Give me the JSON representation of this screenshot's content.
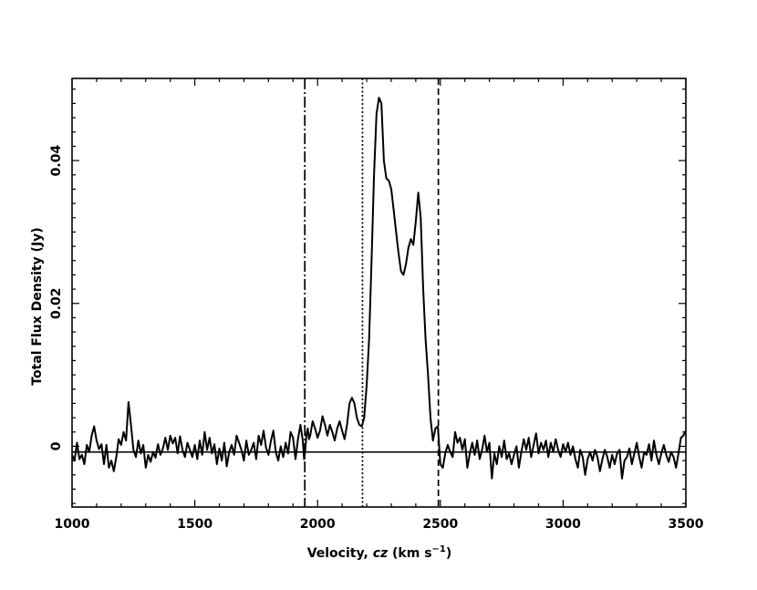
{
  "chart_data": {
    "type": "line",
    "title": "",
    "xlabel": {
      "prefix": "Velocity, ",
      "italic": "cz",
      "suffix": " (km s",
      "sup": "−1",
      "close": ")"
    },
    "ylabel": "Total Flux Density (Jy)",
    "xlim": [
      1000,
      3500
    ],
    "ylim": [
      -0.0085,
      0.0515
    ],
    "xticks": [
      1000,
      1500,
      2000,
      2500,
      3000,
      3500
    ],
    "yticks": [
      0,
      0.02,
      0.04
    ],
    "xtick_labels": [
      "1000",
      "1500",
      "2000",
      "2500",
      "3000",
      "3500"
    ],
    "ytick_labels": [
      "0",
      "0.02",
      "0.04"
    ],
    "baseline": -0.0008,
    "vertical_lines": [
      {
        "x": 1948,
        "style": "dash-dot"
      },
      {
        "x": 2183,
        "style": "dotted"
      },
      {
        "x": 2492,
        "style": "dashed"
      }
    ],
    "series": [
      {
        "points": [
          [
            1000,
            -0.0012
          ],
          [
            1010,
            -0.002
          ],
          [
            1020,
            0.0005
          ],
          [
            1030,
            -0.0018
          ],
          [
            1040,
            -0.0012
          ],
          [
            1050,
            -0.0025
          ],
          [
            1060,
            0.0002
          ],
          [
            1070,
            -0.0008
          ],
          [
            1080,
            0.0015
          ],
          [
            1090,
            0.0028
          ],
          [
            1100,
            0.0008
          ],
          [
            1110,
            -0.0004
          ],
          [
            1120,
            0.0003
          ],
          [
            1130,
            -0.0025
          ],
          [
            1140,
            0.0002
          ],
          [
            1150,
            -0.003
          ],
          [
            1160,
            -0.002
          ],
          [
            1170,
            -0.0035
          ],
          [
            1180,
            -0.0015
          ],
          [
            1190,
            0.001
          ],
          [
            1200,
            0.0002
          ],
          [
            1210,
            0.002
          ],
          [
            1220,
            0.0008
          ],
          [
            1230,
            0.0062
          ],
          [
            1240,
            0.003
          ],
          [
            1250,
            -0.0005
          ],
          [
            1260,
            -0.0015
          ],
          [
            1270,
            0.0008
          ],
          [
            1280,
            -0.001
          ],
          [
            1290,
            0.0002
          ],
          [
            1300,
            -0.003
          ],
          [
            1310,
            -0.0012
          ],
          [
            1320,
            -0.0022
          ],
          [
            1330,
            -0.0008
          ],
          [
            1340,
            -0.0016
          ],
          [
            1350,
            0.0003
          ],
          [
            1360,
            -0.0012
          ],
          [
            1370,
            -0.0003
          ],
          [
            1380,
            0.0012
          ],
          [
            1390,
            -0.0005
          ],
          [
            1400,
            0.0015
          ],
          [
            1410,
            0.0004
          ],
          [
            1420,
            0.0012
          ],
          [
            1430,
            -0.001
          ],
          [
            1440,
            0.0014
          ],
          [
            1450,
            -0.0005
          ],
          [
            1460,
            -0.0015
          ],
          [
            1470,
            0.0005
          ],
          [
            1480,
            -0.0005
          ],
          [
            1490,
            -0.0015
          ],
          [
            1500,
            0.0002
          ],
          [
            1510,
            -0.0018
          ],
          [
            1520,
            0.0008
          ],
          [
            1530,
            -0.0012
          ],
          [
            1540,
            0.002
          ],
          [
            1550,
            -0.0005
          ],
          [
            1560,
            0.0012
          ],
          [
            1570,
            -0.001
          ],
          [
            1580,
            0.0003
          ],
          [
            1590,
            -0.0025
          ],
          [
            1600,
            -0.0003
          ],
          [
            1610,
            -0.002
          ],
          [
            1620,
            0.0005
          ],
          [
            1630,
            -0.0028
          ],
          [
            1640,
            -0.0008
          ],
          [
            1650,
            0.0002
          ],
          [
            1660,
            -0.0012
          ],
          [
            1670,
            0.0015
          ],
          [
            1680,
            0.0005
          ],
          [
            1690,
            -0.0005
          ],
          [
            1700,
            -0.002
          ],
          [
            1710,
            0.0008
          ],
          [
            1720,
            -0.0012
          ],
          [
            1730,
            -0.0005
          ],
          [
            1740,
            0.0005
          ],
          [
            1750,
            -0.0018
          ],
          [
            1760,
            0.0015
          ],
          [
            1770,
            0.0002
          ],
          [
            1780,
            0.0022
          ],
          [
            1790,
            -0.0002
          ],
          [
            1800,
            -0.0012
          ],
          [
            1810,
            0.0008
          ],
          [
            1820,
            0.0022
          ],
          [
            1830,
            -0.0008
          ],
          [
            1840,
            -0.002
          ],
          [
            1850,
            0.0
          ],
          [
            1860,
            -0.0015
          ],
          [
            1870,
            0.0005
          ],
          [
            1880,
            -0.001
          ],
          [
            1890,
            0.002
          ],
          [
            1900,
            0.0012
          ],
          [
            1910,
            -0.0018
          ],
          [
            1920,
            0.001
          ],
          [
            1930,
            0.003
          ],
          [
            1940,
            0.0008
          ],
          [
            1945,
            -0.0018
          ],
          [
            1950,
            -0.0005
          ],
          [
            1955,
            0.0018
          ],
          [
            1960,
            0.0025
          ],
          [
            1965,
            0.001
          ],
          [
            1970,
            0.0015
          ],
          [
            1980,
            0.0035
          ],
          [
            1990,
            0.0025
          ],
          [
            2000,
            0.0012
          ],
          [
            2010,
            0.0022
          ],
          [
            2020,
            0.0042
          ],
          [
            2030,
            0.003
          ],
          [
            2040,
            0.0015
          ],
          [
            2050,
            0.003
          ],
          [
            2060,
            0.002
          ],
          [
            2070,
            0.0008
          ],
          [
            2080,
            0.0025
          ],
          [
            2090,
            0.0035
          ],
          [
            2100,
            0.0022
          ],
          [
            2110,
            0.001
          ],
          [
            2120,
            0.003
          ],
          [
            2130,
            0.006
          ],
          [
            2140,
            0.0068
          ],
          [
            2150,
            0.006
          ],
          [
            2160,
            0.004
          ],
          [
            2170,
            0.003
          ],
          [
            2180,
            0.0028
          ],
          [
            2190,
            0.004
          ],
          [
            2200,
            0.0085
          ],
          [
            2210,
            0.015
          ],
          [
            2220,
            0.026
          ],
          [
            2230,
            0.038
          ],
          [
            2240,
            0.0465
          ],
          [
            2250,
            0.0488
          ],
          [
            2260,
            0.048
          ],
          [
            2270,
            0.04
          ],
          [
            2280,
            0.0375
          ],
          [
            2290,
            0.0372
          ],
          [
            2300,
            0.036
          ],
          [
            2310,
            0.033
          ],
          [
            2320,
            0.03
          ],
          [
            2330,
            0.027
          ],
          [
            2340,
            0.0245
          ],
          [
            2350,
            0.024
          ],
          [
            2360,
            0.0255
          ],
          [
            2370,
            0.0278
          ],
          [
            2380,
            0.029
          ],
          [
            2390,
            0.0282
          ],
          [
            2400,
            0.0315
          ],
          [
            2410,
            0.0355
          ],
          [
            2420,
            0.032
          ],
          [
            2430,
            0.022
          ],
          [
            2440,
            0.015
          ],
          [
            2450,
            0.01
          ],
          [
            2460,
            0.004
          ],
          [
            2470,
            0.0008
          ],
          [
            2480,
            0.0025
          ],
          [
            2490,
            0.0028
          ],
          [
            2500,
            -0.0025
          ],
          [
            2510,
            -0.003
          ],
          [
            2520,
            -0.001
          ],
          [
            2530,
            0.0002
          ],
          [
            2540,
            -0.0008
          ],
          [
            2550,
            -0.0015
          ],
          [
            2560,
            0.002
          ],
          [
            2570,
            0.0005
          ],
          [
            2580,
            0.0012
          ],
          [
            2590,
            -0.0005
          ],
          [
            2600,
            0.001
          ],
          [
            2610,
            -0.003
          ],
          [
            2620,
            -0.001
          ],
          [
            2630,
            0.0005
          ],
          [
            2640,
            -0.0012
          ],
          [
            2650,
            0.0008
          ],
          [
            2660,
            -0.0018
          ],
          [
            2670,
            -0.0005
          ],
          [
            2680,
            0.0015
          ],
          [
            2690,
            -0.0008
          ],
          [
            2700,
            0.0005
          ],
          [
            2710,
            -0.0045
          ],
          [
            2720,
            -0.001
          ],
          [
            2730,
            -0.0025
          ],
          [
            2740,
            0.0
          ],
          [
            2750,
            -0.0015
          ],
          [
            2760,
            0.0008
          ],
          [
            2770,
            -0.0018
          ],
          [
            2780,
            -0.001
          ],
          [
            2790,
            -0.0025
          ],
          [
            2800,
            -0.0012
          ],
          [
            2810,
            0.0
          ],
          [
            2820,
            -0.003
          ],
          [
            2830,
            -0.0008
          ],
          [
            2840,
            0.001
          ],
          [
            2850,
            -0.0005
          ],
          [
            2860,
            0.0012
          ],
          [
            2870,
            -0.0015
          ],
          [
            2880,
            0.0002
          ],
          [
            2890,
            0.0018
          ],
          [
            2900,
            -0.001
          ],
          [
            2910,
            0.0005
          ],
          [
            2920,
            -0.0005
          ],
          [
            2930,
            0.0008
          ],
          [
            2940,
            -0.0015
          ],
          [
            2950,
            0.0005
          ],
          [
            2960,
            -0.0008
          ],
          [
            2970,
            0.001
          ],
          [
            2980,
            -0.0005
          ],
          [
            2990,
            -0.0015
          ],
          [
            3000,
            0.0003
          ],
          [
            3010,
            -0.0008
          ],
          [
            3020,
            0.0005
          ],
          [
            3030,
            -0.0012
          ],
          [
            3040,
            0.0
          ],
          [
            3050,
            -0.0018
          ],
          [
            3060,
            -0.003
          ],
          [
            3070,
            -0.0005
          ],
          [
            3080,
            -0.0015
          ],
          [
            3090,
            -0.004
          ],
          [
            3100,
            -0.0018
          ],
          [
            3110,
            -0.0008
          ],
          [
            3120,
            -0.002
          ],
          [
            3130,
            -0.0005
          ],
          [
            3140,
            -0.0015
          ],
          [
            3150,
            -0.0035
          ],
          [
            3160,
            -0.0018
          ],
          [
            3170,
            -0.0005
          ],
          [
            3180,
            -0.0015
          ],
          [
            3190,
            -0.003
          ],
          [
            3200,
            -0.0012
          ],
          [
            3210,
            -0.0025
          ],
          [
            3220,
            -0.001
          ],
          [
            3230,
            -0.0005
          ],
          [
            3240,
            -0.0045
          ],
          [
            3250,
            -0.002
          ],
          [
            3260,
            -0.0015
          ],
          [
            3270,
            -0.0003
          ],
          [
            3280,
            -0.0025
          ],
          [
            3290,
            -0.001
          ],
          [
            3300,
            0.0005
          ],
          [
            3310,
            -0.0015
          ],
          [
            3320,
            -0.003
          ],
          [
            3330,
            -0.0008
          ],
          [
            3340,
            -0.0012
          ],
          [
            3350,
            0.0003
          ],
          [
            3360,
            -0.002
          ],
          [
            3370,
            0.0008
          ],
          [
            3380,
            -0.0012
          ],
          [
            3390,
            -0.0025
          ],
          [
            3400,
            -0.001
          ],
          [
            3410,
            0.0002
          ],
          [
            3420,
            -0.0012
          ],
          [
            3430,
            -0.0022
          ],
          [
            3440,
            -0.0008
          ],
          [
            3450,
            -0.0015
          ],
          [
            3460,
            -0.003
          ],
          [
            3470,
            -0.001
          ],
          [
            3480,
            0.0012
          ],
          [
            3490,
            0.0015
          ],
          [
            3500,
            0.0022
          ]
        ]
      }
    ]
  }
}
